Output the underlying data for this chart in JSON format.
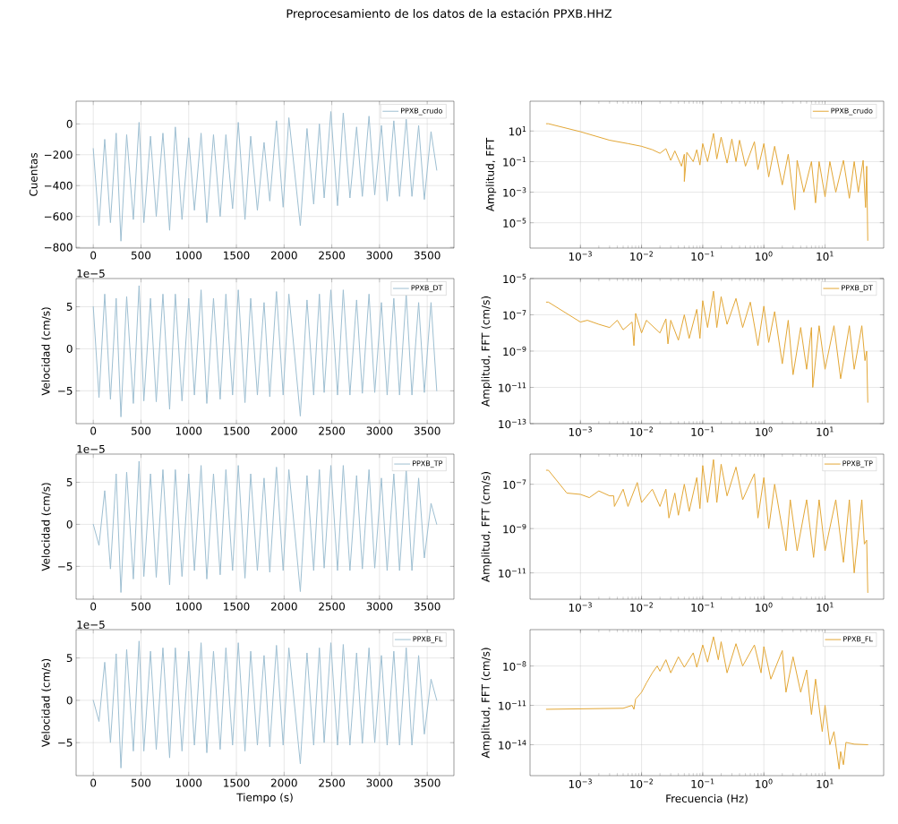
{
  "chart_data": [
    {
      "type": "line",
      "title": "Preprocesamiento de los datos de la estación PPXB.HHZ",
      "ylabel": "Cuentas",
      "grid": true,
      "legend": "top right",
      "xlim": [
        -180,
        3780
      ],
      "ylim": [
        -805,
        147
      ],
      "xticks": [
        0,
        500,
        1000,
        1500,
        2000,
        2500,
        3000,
        3500
      ],
      "yticks": [
        {
          "value": -800,
          "label": "−800"
        },
        {
          "value": -600,
          "label": "−600"
        },
        {
          "value": -400,
          "label": "−400"
        },
        {
          "value": -200,
          "label": "−200"
        },
        0
      ],
      "x": [
        0,
        60,
        120,
        180,
        240,
        290,
        350,
        420,
        480,
        530,
        600,
        660,
        730,
        800,
        860,
        930,
        1000,
        1060,
        1130,
        1190,
        1260,
        1330,
        1390,
        1460,
        1520,
        1590,
        1650,
        1720,
        1790,
        1850,
        1920,
        1990,
        2050,
        2170,
        2240,
        2310,
        2370,
        2420,
        2490,
        2560,
        2620,
        2690,
        2760,
        2820,
        2890,
        2950,
        3020,
        3080,
        3150,
        3210,
        3280,
        3340,
        3410,
        3470,
        3540,
        3600
      ],
      "series": [
        {
          "name": "PPXB_crudo",
          "color": "#9ebfd2",
          "values": [
            -160,
            -660,
            -100,
            -640,
            -60,
            -760,
            -70,
            -620,
            10,
            -640,
            -80,
            -600,
            -60,
            -690,
            -20,
            -620,
            -90,
            -560,
            -60,
            -640,
            -70,
            -600,
            -70,
            -550,
            10,
            -620,
            -80,
            -560,
            -120,
            -500,
            20,
            -540,
            40,
            -660,
            -30,
            -520,
            0,
            -480,
            80,
            -530,
            70,
            -480,
            -20,
            -470,
            50,
            -460,
            -10,
            -500,
            20,
            -470,
            30,
            -470,
            -10,
            -490,
            -50,
            -300
          ]
        }
      ]
    },
    {
      "type": "line",
      "ylabel": "Amplitud, FFT",
      "log": "xy",
      "grid": true,
      "legend": "top right",
      "xlim": [
        0.00015,
        91
      ],
      "ylim": [
        2.2e-07,
        890
      ],
      "xticks": [
        {
          "value": 0.001,
          "label": "10$^{−3}$"
        },
        {
          "value": 0.01,
          "label": "10$^{−2}$"
        },
        {
          "value": 0.1,
          "label": "10$^{−1}$"
        },
        {
          "value": 1,
          "label": "10$^{0}$"
        },
        {
          "value": 10,
          "label": "10$^{1}$"
        }
      ],
      "yticks": [
        {
          "value": 1e-05,
          "label": "10$^{−5}$"
        },
        {
          "value": 0.001,
          "label": "10$^{−3}$"
        },
        {
          "value": 0.1,
          "label": "10$^{−1}$"
        },
        {
          "value": 10,
          "label": "10$^{1}$"
        }
      ],
      "x": [
        0.000278,
        0.0003,
        0.001,
        0.003,
        0.006,
        0.01,
        0.015,
        0.02,
        0.025,
        0.03,
        0.035,
        0.045,
        0.05,
        0.05,
        0.055,
        0.07,
        0.08,
        0.09,
        0.1,
        0.12,
        0.15,
        0.17,
        0.2,
        0.25,
        0.3,
        0.35,
        0.4,
        0.5,
        0.7,
        0.8,
        1.0,
        1.2,
        1.5,
        2.0,
        2.5,
        3.2,
        3.5,
        4.5,
        6,
        7,
        8,
        10,
        12,
        15,
        20,
        25,
        30,
        35,
        42,
        46,
        48,
        50
      ],
      "series": [
        {
          "name": "PPXB_crudo",
          "color": "#e3a736",
          "values": [
            30,
            30,
            9,
            2.5,
            1.5,
            1.0,
            0.6,
            0.35,
            0.7,
            0.12,
            0.5,
            0.05,
            0.3,
            0.005,
            0.4,
            0.1,
            0.6,
            0.06,
            1.5,
            0.1,
            7,
            0.15,
            4,
            0.08,
            3,
            0.1,
            2.5,
            0.05,
            2,
            0.03,
            1.5,
            0.01,
            1,
            0.003,
            0.3,
            7e-05,
            0.12,
            0.001,
            0.1,
            0.0002,
            0.1,
            0.0005,
            0.1,
            0.001,
            0.12,
            0.0004,
            0.1,
            0.001,
            0.12,
            0.0001,
            0.05,
            7e-07
          ]
        }
      ]
    },
    {
      "type": "line",
      "ylabel": "Velocidad (cm/s)",
      "annotations": [
        "1e−5"
      ],
      "grid": true,
      "legend": "top right",
      "xlim": [
        -180,
        3780
      ],
      "ylim": [
        -8.9,
        8.35
      ],
      "xticks": [
        0,
        500,
        1000,
        1500,
        2000,
        2500,
        3000,
        3500
      ],
      "yticks": [
        {
          "value": -5,
          "label": "−5"
        },
        0,
        5
      ],
      "x": [
        0,
        60,
        120,
        180,
        240,
        290,
        350,
        420,
        480,
        530,
        600,
        660,
        730,
        800,
        860,
        930,
        1000,
        1060,
        1130,
        1190,
        1260,
        1330,
        1390,
        1460,
        1520,
        1590,
        1650,
        1720,
        1790,
        1850,
        1920,
        1990,
        2050,
        2170,
        2240,
        2310,
        2370,
        2420,
        2490,
        2560,
        2620,
        2690,
        2760,
        2820,
        2890,
        2950,
        3020,
        3080,
        3150,
        3210,
        3280,
        3340,
        3410,
        3470,
        3540,
        3600
      ],
      "series": [
        {
          "name": "PPXB_DT",
          "color": "#9ebfd2",
          "values": [
            5,
            -5.8,
            6.5,
            -6,
            6,
            -8.1,
            6.2,
            -6.5,
            7.5,
            -6.2,
            6,
            -6.3,
            6.5,
            -7.2,
            6.5,
            -6.2,
            6,
            -5.5,
            7,
            -6.5,
            6,
            -6,
            6.5,
            -5.5,
            7,
            -6.4,
            6,
            -5.5,
            5.5,
            -5.7,
            6.8,
            -5.5,
            6.5,
            -8.0,
            5.8,
            -5.5,
            6.5,
            -5.2,
            7,
            -5.5,
            7,
            -5.5,
            5.8,
            -5.3,
            6.5,
            -5.2,
            5.5,
            -5.5,
            6,
            -5.5,
            6.5,
            -5.5,
            5.5,
            -5.2,
            5.5,
            -5
          ]
        }
      ]
    },
    {
      "type": "line",
      "ylabel": "Amplitud, FFT (cm/s)",
      "log": "xy",
      "grid": true,
      "legend": "top right",
      "xlim": [
        0.00015,
        91
      ],
      "ylim": [
        1e-13,
        1e-05
      ],
      "xticks": [
        {
          "value": 0.001,
          "label": "10$^{−3}$"
        },
        {
          "value": 0.01,
          "label": "10$^{−2}$"
        },
        {
          "value": 0.1,
          "label": "10$^{−1}$"
        },
        {
          "value": 1,
          "label": "10$^{0}$"
        },
        {
          "value": 10,
          "label": "10$^{1}$"
        }
      ],
      "yticks": [
        {
          "value": 1e-13,
          "label": "10$^{−13}$"
        },
        {
          "value": 1e-11,
          "label": "10$^{−11}$"
        },
        {
          "value": 1e-09,
          "label": "10$^{−9}$"
        },
        {
          "value": 1e-07,
          "label": "10$^{−7}$"
        },
        {
          "value": 1e-05,
          "label": "10$^{−5}$"
        }
      ],
      "x": [
        0.000278,
        0.0003,
        0.001,
        0.0013,
        0.002,
        0.003,
        0.004,
        0.005,
        0.007,
        0.0075,
        0.008,
        0.01,
        0.012,
        0.02,
        0.025,
        0.027,
        0.03,
        0.04,
        0.05,
        0.06,
        0.08,
        0.09,
        0.1,
        0.12,
        0.15,
        0.17,
        0.2,
        0.25,
        0.35,
        0.45,
        0.6,
        0.8,
        1.0,
        1.2,
        1.5,
        2.0,
        2.5,
        3,
        4,
        5,
        6,
        6.3,
        8,
        10,
        14,
        18,
        25,
        30,
        40,
        45,
        48,
        50
      ],
      "series": [
        {
          "name": "PPXB_DT",
          "color": "#e3a736",
          "values": [
            5e-07,
            5e-07,
            4e-08,
            5e-08,
            3e-08,
            2e-08,
            5e-08,
            1.5e-08,
            4e-08,
            2e-09,
            1.2e-07,
            1e-08,
            5e-08,
            1e-08,
            6e-08,
            2.5e-09,
            5e-08,
            4e-09,
            1e-07,
            5e-09,
            2e-07,
            5e-09,
            6e-07,
            2e-08,
            2e-06,
            2e-08,
            1e-06,
            3e-08,
            8e-07,
            2e-08,
            5e-07,
            2e-09,
            3e-07,
            3e-09,
            1.5e-07,
            2e-10,
            5e-08,
            5e-11,
            2e-08,
            1e-10,
            2e-08,
            1e-11,
            2.5e-08,
            1e-10,
            2.5e-08,
            3e-11,
            2.5e-08,
            1e-10,
            2.5e-08,
            3e-10,
            1e-09,
            1.5e-12
          ]
        }
      ]
    },
    {
      "type": "line",
      "ylabel": "Velocidad (cm/s)",
      "annotations": [
        "1e−5"
      ],
      "grid": true,
      "legend": "top right",
      "xlim": [
        -180,
        3780
      ],
      "ylim": [
        -8.9,
        8.35
      ],
      "xticks": [
        0,
        500,
        1000,
        1500,
        2000,
        2500,
        3000,
        3500
      ],
      "yticks": [
        {
          "value": -5,
          "label": "−5"
        },
        0,
        5
      ],
      "x": [
        0,
        60,
        120,
        180,
        240,
        290,
        350,
        420,
        480,
        530,
        600,
        660,
        730,
        800,
        860,
        930,
        1000,
        1060,
        1130,
        1190,
        1260,
        1330,
        1390,
        1460,
        1520,
        1590,
        1650,
        1720,
        1790,
        1850,
        1920,
        1990,
        2050,
        2170,
        2240,
        2310,
        2370,
        2420,
        2490,
        2560,
        2620,
        2690,
        2760,
        2820,
        2890,
        2950,
        3020,
        3080,
        3150,
        3210,
        3280,
        3340,
        3410,
        3470,
        3540,
        3600
      ],
      "series": [
        {
          "name": "PPXB_TP",
          "color": "#9ebfd2",
          "values": [
            0,
            -2.5,
            4,
            -5.3,
            6,
            -8.1,
            6.2,
            -6.5,
            7.5,
            -6.2,
            6,
            -6.3,
            6.5,
            -7.2,
            6.5,
            -6.2,
            6,
            -5.5,
            7,
            -6.5,
            6,
            -6,
            6.5,
            -5.5,
            7,
            -6.4,
            6,
            -5.5,
            5.5,
            -5.7,
            6.8,
            -5.5,
            6.5,
            -8.0,
            5.8,
            -5.5,
            6.5,
            -5.2,
            7,
            -5.5,
            7,
            -5.5,
            5.8,
            -5.3,
            6.5,
            -5.2,
            5.5,
            -5.5,
            6,
            -5.5,
            6.5,
            -5.5,
            5.5,
            -4,
            2.5,
            0
          ]
        }
      ]
    },
    {
      "type": "line",
      "ylabel": "Amplitud, FFT (cm/s)",
      "log": "xy",
      "grid": true,
      "legend": "top right",
      "xlim": [
        0.00015,
        91
      ],
      "ylim": [
        6.5e-13,
        2.3e-06
      ],
      "xticks": [
        {
          "value": 0.001,
          "label": "10$^{−3}$"
        },
        {
          "value": 0.01,
          "label": "10$^{−2}$"
        },
        {
          "value": 0.1,
          "label": "10$^{−1}$"
        },
        {
          "value": 1,
          "label": "10$^{0}$"
        },
        {
          "value": 10,
          "label": "10$^{1}$"
        }
      ],
      "yticks": [
        {
          "value": 1e-11,
          "label": "10$^{−11}$"
        },
        {
          "value": 1e-09,
          "label": "10$^{−9}$"
        },
        {
          "value": 1e-07,
          "label": "10$^{−7}$"
        }
      ],
      "x": [
        0.000278,
        0.0003,
        0.0006,
        0.001,
        0.0014,
        0.002,
        0.003,
        0.0035,
        0.0036,
        0.005,
        0.006,
        0.0085,
        0.01,
        0.015,
        0.02,
        0.025,
        0.028,
        0.035,
        0.04,
        0.05,
        0.06,
        0.08,
        0.09,
        0.1,
        0.12,
        0.15,
        0.17,
        0.2,
        0.25,
        0.35,
        0.45,
        0.7,
        0.8,
        1.0,
        1.2,
        1.5,
        2.3,
        2.7,
        3.5,
        5,
        6.5,
        8,
        10,
        15,
        20,
        25,
        30,
        40,
        44,
        48,
        50
      ],
      "series": [
        {
          "name": "PPXB_TP",
          "color": "#e3a736",
          "values": [
            4.3e-07,
            4.3e-07,
            4e-08,
            3.5e-08,
            2.5e-08,
            5e-08,
            3e-08,
            3e-08,
            1e-08,
            6e-08,
            1e-08,
            1.2e-07,
            1.5e-08,
            6e-08,
            1e-08,
            6e-08,
            3e-09,
            4e-08,
            4e-09,
            1e-07,
            6e-09,
            2e-07,
            8e-09,
            7e-07,
            1.5e-08,
            1.3e-06,
            1.5e-08,
            8e-07,
            3e-08,
            6e-07,
            2e-08,
            3e-07,
            3e-09,
            2e-07,
            1e-09,
            1e-07,
            1e-10,
            2e-08,
            1e-10,
            2e-08,
            5e-11,
            2e-08,
            1e-10,
            2e-08,
            3e-11,
            2e-08,
            1e-11,
            2e-08,
            2e-10,
            3e-10,
            1.3e-12
          ]
        }
      ]
    },
    {
      "type": "line",
      "ylabel": "Velocidad (cm/s)",
      "xlabel": "Tiempo (s)",
      "annotations": [
        "1e−5"
      ],
      "grid": true,
      "legend": "top right",
      "xlim": [
        -180,
        3780
      ],
      "ylim": [
        -8.9,
        8.35
      ],
      "xticks": [
        0,
        500,
        1000,
        1500,
        2000,
        2500,
        3000,
        3500
      ],
      "yticks": [
        {
          "value": -5,
          "label": "−5"
        },
        0,
        5
      ],
      "x": [
        0,
        60,
        120,
        180,
        240,
        290,
        350,
        420,
        480,
        530,
        600,
        660,
        730,
        800,
        860,
        930,
        1000,
        1060,
        1130,
        1190,
        1260,
        1330,
        1390,
        1460,
        1520,
        1590,
        1650,
        1720,
        1790,
        1850,
        1920,
        1990,
        2050,
        2170,
        2240,
        2310,
        2370,
        2420,
        2490,
        2560,
        2620,
        2690,
        2760,
        2820,
        2890,
        2950,
        3020,
        3080,
        3150,
        3210,
        3280,
        3340,
        3410,
        3470,
        3540,
        3600
      ],
      "series": [
        {
          "name": "PPXB_FL",
          "color": "#9ebfd2",
          "values": [
            0,
            -2.5,
            4.5,
            -5,
            5.5,
            -8,
            6,
            -6,
            7,
            -6,
            5.8,
            -5.8,
            6.2,
            -6.8,
            6.2,
            -6,
            5.8,
            -5.3,
            6.8,
            -6.2,
            5.8,
            -5.8,
            6.2,
            -5.3,
            6.8,
            -6,
            5.8,
            -5.3,
            5.3,
            -5.5,
            6.5,
            -5.3,
            6.2,
            -7.5,
            5.6,
            -5.3,
            6.2,
            -5,
            6.8,
            -5.3,
            6.6,
            -5.3,
            5.6,
            -5.1,
            6.2,
            -5,
            5.3,
            -5.3,
            5.8,
            -5.3,
            6.2,
            -5.3,
            5.3,
            -4,
            2.5,
            0
          ]
        }
      ]
    },
    {
      "type": "line",
      "ylabel": "Amplitud, FFT (cm/s)",
      "xlabel": "Frecuencia (Hz)",
      "log": "xy",
      "grid": true,
      "legend": "top right",
      "xlim": [
        0.00015,
        91
      ],
      "ylim": [
        4.4e-17,
        5.9e-06
      ],
      "xticks": [
        {
          "value": 0.001,
          "label": "10$^{−3}$"
        },
        {
          "value": 0.01,
          "label": "10$^{−2}$"
        },
        {
          "value": 0.1,
          "label": "10$^{−1}$"
        },
        {
          "value": 1,
          "label": "10$^{0}$"
        },
        {
          "value": 10,
          "label": "10$^{1}$"
        }
      ],
      "yticks": [
        {
          "value": 1e-14,
          "label": "10$^{−14}$"
        },
        {
          "value": 1e-11,
          "label": "10$^{−11}$"
        },
        {
          "value": 1e-08,
          "label": "10$^{−8}$"
        }
      ],
      "x": [
        0.000278,
        0.005,
        0.007,
        0.0075,
        0.008,
        0.01,
        0.012,
        0.015,
        0.018,
        0.02,
        0.025,
        0.03,
        0.04,
        0.05,
        0.07,
        0.08,
        0.1,
        0.12,
        0.15,
        0.18,
        0.2,
        0.25,
        0.35,
        0.45,
        0.7,
        0.9,
        1.0,
        1.3,
        2,
        2.3,
        3,
        4,
        5,
        6,
        7,
        9,
        10,
        12,
        14,
        17,
        18,
        20,
        22,
        30,
        50
      ],
      "series": [
        {
          "name": "PPXB_FL",
          "color": "#e3a736",
          "values": [
            5e-12,
            6e-12,
            1e-11,
            5e-12,
            3e-11,
            1e-10,
            5e-10,
            3e-09,
            1e-08,
            4e-09,
            3e-08,
            3e-09,
            5e-08,
            8e-09,
            1e-07,
            8e-09,
            4e-07,
            2e-08,
            1.7e-06,
            3e-08,
            7e-07,
            3e-09,
            5e-07,
            1e-08,
            4e-07,
            3e-09,
            3e-07,
            1e-09,
            1.5e-07,
            1e-10,
            5e-08,
            1e-10,
            5e-09,
            2e-12,
            1e-09,
            1e-13,
            1e-11,
            1e-14,
            1e-13,
            1.4e-16,
            3e-15,
            3e-16,
            1.5e-14,
            1.1e-14,
            1e-14
          ]
        }
      ]
    }
  ]
}
